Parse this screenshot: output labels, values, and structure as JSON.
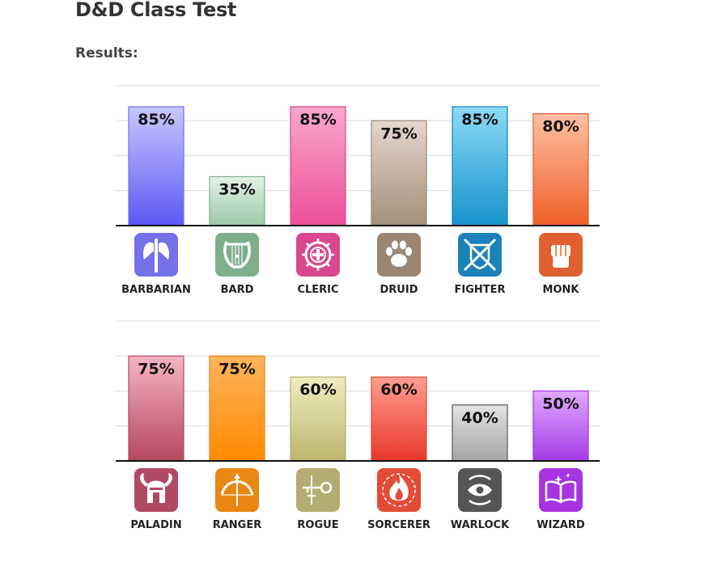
{
  "page": {
    "title": "D&D Class Test",
    "results_label": "Results:"
  },
  "chart_data": [
    {
      "type": "bar",
      "categories": [
        "BARBARIAN",
        "BARD",
        "CLERIC",
        "DRUID",
        "FIGHTER",
        "MONK"
      ],
      "values": [
        85,
        35,
        85,
        75,
        85,
        80
      ],
      "data_labels": [
        "85%",
        "35%",
        "85%",
        "75%",
        "85%",
        "80%"
      ],
      "ylim": [
        0,
        100
      ],
      "grid": true,
      "icons": [
        "battle-axe-icon",
        "lyre-icon",
        "holy-symbol-icon",
        "paw-print-icon",
        "crossed-swords-shield-icon",
        "fist-icon"
      ],
      "colors": [
        [
          "#c9c8ff",
          "#5b57f2",
          "#7470e8"
        ],
        [
          "#e2f2e6",
          "#9cc9a8",
          "#7fae8c"
        ],
        [
          "#f9a8cc",
          "#ec4f9a",
          "#d9488c"
        ],
        [
          "#e7d7cd",
          "#a38f7c",
          "#9a8673"
        ],
        [
          "#8bdbf5",
          "#1693cd",
          "#1a82b9"
        ],
        [
          "#ffc0a5",
          "#ee5f26",
          "#e0602f"
        ]
      ]
    },
    {
      "type": "bar",
      "categories": [
        "PALADIN",
        "RANGER",
        "ROGUE",
        "SORCERER",
        "WARLOCK",
        "WIZARD"
      ],
      "values": [
        75,
        75,
        60,
        60,
        40,
        50
      ],
      "data_labels": [
        "75%",
        "75%",
        "60%",
        "60%",
        "40%",
        "50%"
      ],
      "ylim": [
        0,
        100
      ],
      "grid": true,
      "icons": [
        "winged-helmet-icon",
        "bow-and-arrow-icon",
        "key-and-dagger-icon",
        "flame-icon",
        "all-seeing-eye-icon",
        "spellbook-icon"
      ],
      "colors": [
        [
          "#f6b4c2",
          "#b5475f",
          "#b04a63"
        ],
        [
          "#ffb45c",
          "#ff8a00",
          "#ea8712"
        ],
        [
          "#efedc0",
          "#bdb56e",
          "#b4ad72"
        ],
        [
          "#ff9e8f",
          "#e8362a",
          "#e24c36"
        ],
        [
          "#e3e3e3",
          "#a6a6a6",
          "#555555"
        ],
        [
          "#e0aaff",
          "#a33ae6",
          "#a734e0"
        ]
      ]
    }
  ]
}
